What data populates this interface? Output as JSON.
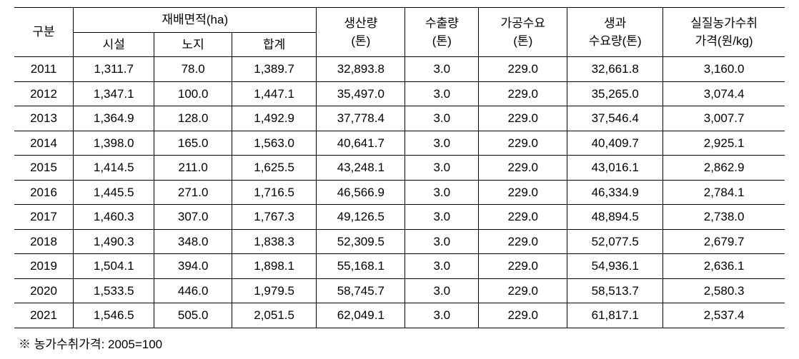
{
  "table": {
    "columns": {
      "gubun": "구분",
      "area_group": "재배면적(ha)",
      "area_sisul": "시설",
      "area_noji": "노지",
      "area_hapgye": "합계",
      "production": "생산량\n(톤)",
      "export": "수출량\n(톤)",
      "processing": "가공수요\n(톤)",
      "fresh_demand": "생과\n수요량(톤)",
      "real_price": "실질농가수취\n가격(원/kg)"
    },
    "col_widths": {
      "gubun": 80,
      "area_sisul": 110,
      "area_noji": 105,
      "area_hapgye": 115,
      "production": 120,
      "export": 100,
      "processing": 120,
      "fresh_demand": 130,
      "real_price": 165
    },
    "rows": [
      {
        "year": "2011",
        "sisul": "1,311.7",
        "noji": "78.0",
        "hapgye": "1,389.7",
        "prod": "32,893.8",
        "exp": "3.0",
        "proc": "229.0",
        "fresh": "32,661.8",
        "price": "3,160.0"
      },
      {
        "year": "2012",
        "sisul": "1,347.1",
        "noji": "100.0",
        "hapgye": "1,447.1",
        "prod": "35,497.0",
        "exp": "3.0",
        "proc": "229.0",
        "fresh": "35,265.0",
        "price": "3,074.4"
      },
      {
        "year": "2013",
        "sisul": "1,364.9",
        "noji": "128.0",
        "hapgye": "1,492.9",
        "prod": "37,778.4",
        "exp": "3.0",
        "proc": "229.0",
        "fresh": "37,546.4",
        "price": "3,007.7"
      },
      {
        "year": "2014",
        "sisul": "1,398.0",
        "noji": "165.0",
        "hapgye": "1,563.0",
        "prod": "40,641.7",
        "exp": "3.0",
        "proc": "229.0",
        "fresh": "40,409.7",
        "price": "2,925.1"
      },
      {
        "year": "2015",
        "sisul": "1,414.5",
        "noji": "211.0",
        "hapgye": "1,625.5",
        "prod": "43,248.1",
        "exp": "3.0",
        "proc": "229.0",
        "fresh": "43,016.1",
        "price": "2,862.9"
      },
      {
        "year": "2016",
        "sisul": "1,445.5",
        "noji": "271.0",
        "hapgye": "1,716.5",
        "prod": "46,566.9",
        "exp": "3.0",
        "proc": "229.0",
        "fresh": "46,334.9",
        "price": "2,784.1"
      },
      {
        "year": "2017",
        "sisul": "1,460.3",
        "noji": "307.0",
        "hapgye": "1,767.3",
        "prod": "49,126.5",
        "exp": "3.0",
        "proc": "229.0",
        "fresh": "48,894.5",
        "price": "2,738.0"
      },
      {
        "year": "2018",
        "sisul": "1,490.3",
        "noji": "348.0",
        "hapgye": "1,838.3",
        "prod": "52,309.5",
        "exp": "3.0",
        "proc": "229.0",
        "fresh": "52,077.5",
        "price": "2,679.7"
      },
      {
        "year": "2019",
        "sisul": "1,504.1",
        "noji": "394.0",
        "hapgye": "1,898.1",
        "prod": "55,168.1",
        "exp": "3.0",
        "proc": "229.0",
        "fresh": "54,936.1",
        "price": "2,636.1"
      },
      {
        "year": "2020",
        "sisul": "1,533.5",
        "noji": "446.0",
        "hapgye": "1,979.5",
        "prod": "58,745.7",
        "exp": "3.0",
        "proc": "229.0",
        "fresh": "58,513.7",
        "price": "2,580.3"
      },
      {
        "year": "2021",
        "sisul": "1,546.5",
        "noji": "505.0",
        "hapgye": "2,051.5",
        "prod": "62,049.1",
        "exp": "3.0",
        "proc": "229.0",
        "fresh": "61,817.1",
        "price": "2,537.4"
      }
    ]
  },
  "footnote": "※  농가수취가격: 2005=100",
  "style": {
    "font_size": 17,
    "border_color": "#000000",
    "background": "#ffffff"
  }
}
